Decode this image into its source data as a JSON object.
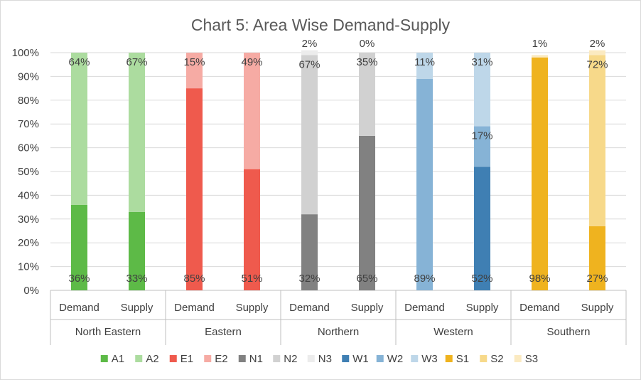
{
  "chart_data": {
    "type": "bar",
    "stacked": true,
    "title": "Chart 5: Area Wise Demand-Supply",
    "xlabel": "",
    "ylabel": "",
    "ylim": [
      0,
      100
    ],
    "y_ticks": [
      "0%",
      "10%",
      "20%",
      "30%",
      "40%",
      "50%",
      "60%",
      "70%",
      "80%",
      "90%",
      "100%"
    ],
    "grid": true,
    "legend_position": "bottom",
    "groups": [
      {
        "name": "North Eastern",
        "bars": [
          {
            "category": "Demand",
            "segments": [
              {
                "series": "A1",
                "value": 36,
                "label": "36%"
              },
              {
                "series": "A2",
                "value": 64,
                "label": "64%"
              }
            ]
          },
          {
            "category": "Supply",
            "segments": [
              {
                "series": "A1",
                "value": 33,
                "label": "33%"
              },
              {
                "series": "A2",
                "value": 67,
                "label": "67%"
              }
            ]
          }
        ]
      },
      {
        "name": "Eastern",
        "bars": [
          {
            "category": "Demand",
            "segments": [
              {
                "series": "E1",
                "value": 85,
                "label": "85%"
              },
              {
                "series": "E2",
                "value": 15,
                "label": "15%"
              }
            ]
          },
          {
            "category": "Supply",
            "segments": [
              {
                "series": "E1",
                "value": 51,
                "label": "51%"
              },
              {
                "series": "E2",
                "value": 49,
                "label": "49%"
              }
            ]
          }
        ]
      },
      {
        "name": "Northern",
        "bars": [
          {
            "category": "Demand",
            "segments": [
              {
                "series": "N1",
                "value": 32,
                "label": "32%"
              },
              {
                "series": "N2",
                "value": 67,
                "label": "67%"
              },
              {
                "series": "N3",
                "value": 2,
                "label": "2%"
              }
            ]
          },
          {
            "category": "Supply",
            "segments": [
              {
                "series": "N1",
                "value": 65,
                "label": "65%"
              },
              {
                "series": "N2",
                "value": 35,
                "label": "35%"
              },
              {
                "series": "N3",
                "value": 0,
                "label": "0%"
              }
            ]
          }
        ]
      },
      {
        "name": "Western",
        "bars": [
          {
            "category": "Demand",
            "segments": [
              {
                "series": "W2",
                "value": 89,
                "label": "89%"
              },
              {
                "series": "W3",
                "value": 11,
                "label": "11%"
              }
            ]
          },
          {
            "category": "Supply",
            "segments": [
              {
                "series": "W1",
                "value": 52,
                "label": "52%"
              },
              {
                "series": "W2",
                "value": 17,
                "label": "17%"
              },
              {
                "series": "W3",
                "value": 31,
                "label": "31%"
              }
            ]
          }
        ]
      },
      {
        "name": "Southern",
        "bars": [
          {
            "category": "Demand",
            "segments": [
              {
                "series": "S1",
                "value": 98,
                "label": "98%"
              },
              {
                "series": "S3",
                "value": 1,
                "label": "1%"
              }
            ]
          },
          {
            "category": "Supply",
            "segments": [
              {
                "series": "S1",
                "value": 27,
                "label": "27%"
              },
              {
                "series": "S2",
                "value": 72,
                "label": "72%"
              },
              {
                "series": "S3",
                "value": 2,
                "label": "2%"
              }
            ]
          }
        ]
      }
    ],
    "legend": [
      {
        "name": "A1",
        "color": "#5dba47"
      },
      {
        "name": "A2",
        "color": "#acdc9f"
      },
      {
        "name": "E1",
        "color": "#ef5a4d"
      },
      {
        "name": "E2",
        "color": "#f6aba4"
      },
      {
        "name": "N1",
        "color": "#818181"
      },
      {
        "name": "N2",
        "color": "#d1d1d1"
      },
      {
        "name": "N3",
        "color": "#ececec"
      },
      {
        "name": "W1",
        "color": "#3f7fb3"
      },
      {
        "name": "W2",
        "color": "#86b3d6"
      },
      {
        "name": "W3",
        "color": "#bed7e9"
      },
      {
        "name": "S1",
        "color": "#efb31f"
      },
      {
        "name": "S2",
        "color": "#f7d98a"
      },
      {
        "name": "S3",
        "color": "#fbeac1"
      }
    ]
  }
}
